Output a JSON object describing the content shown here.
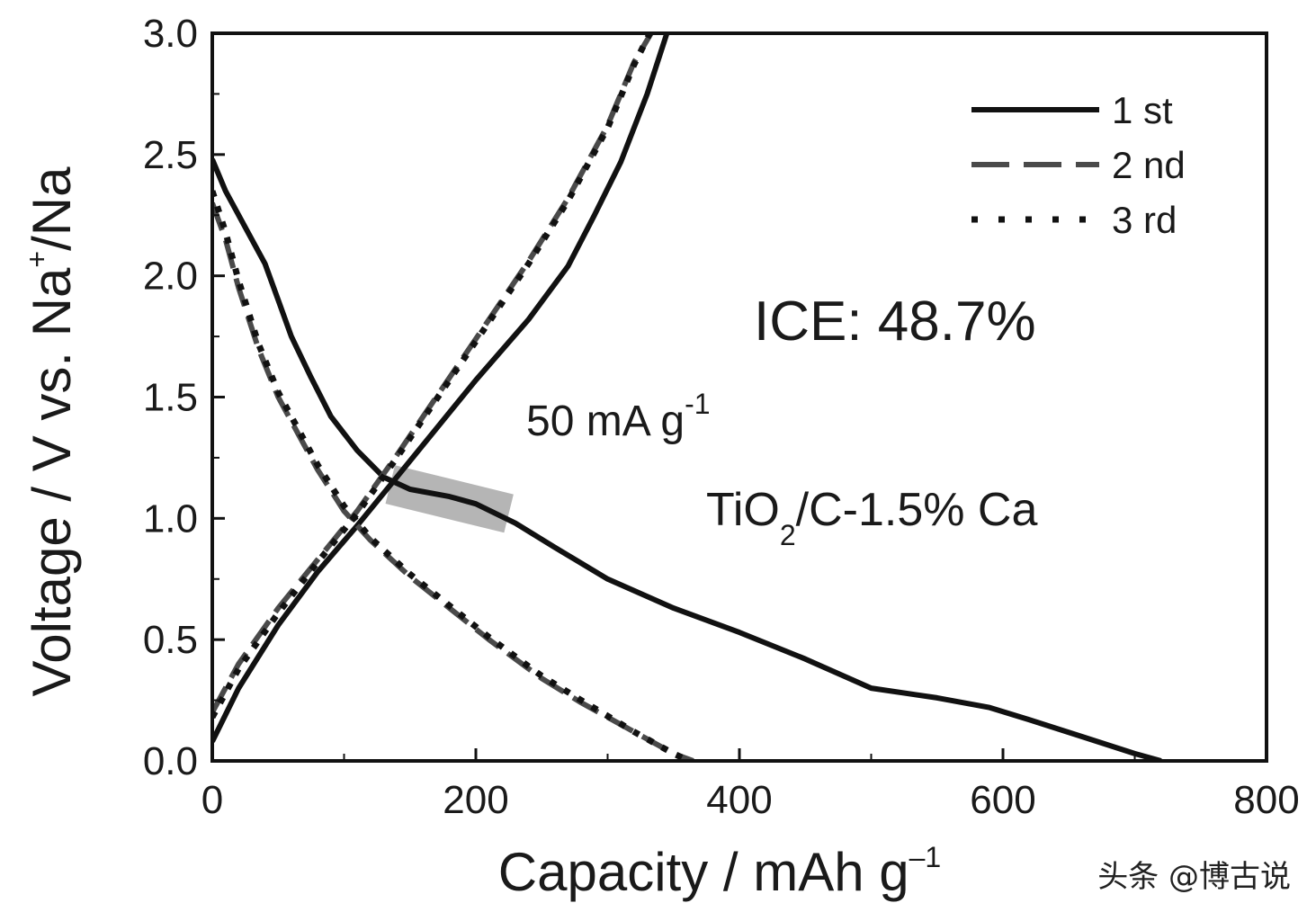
{
  "chart_data": {
    "type": "line",
    "xlabel": "Capacity / mAh g",
    "xlabel_sup": "–1",
    "ylabel_prefix": "Voltage / V vs. Na",
    "ylabel_sup": "+",
    "ylabel_suffix": "/Na",
    "xlim": [
      0,
      800
    ],
    "ylim": [
      0,
      3.0
    ],
    "xticks": [
      "0",
      "200",
      "400",
      "600",
      "800"
    ],
    "yticks": [
      "0.0",
      "0.5",
      "1.0",
      "1.5",
      "2.0",
      "2.5",
      "3.0"
    ],
    "legend": {
      "position": "top-right",
      "entries": [
        {
          "label": "1 st",
          "style": "solid",
          "color": "#111111"
        },
        {
          "label": "2 nd",
          "style": "dashed",
          "color": "#4a4a4a"
        },
        {
          "label": "3 rd",
          "style": "dotted",
          "color": "#111111"
        }
      ]
    },
    "annotations": {
      "ice": "ICE: 48.7%",
      "current_main": "50 mA g",
      "current_sup": "-1",
      "material_a": "TiO",
      "material_sub": "2",
      "material_b": "/C-1.5% Ca"
    },
    "highlight_band": {
      "from": [
        135,
        1.14
      ],
      "to": [
        225,
        1.02
      ],
      "color": "#a8a8a8"
    },
    "series": [
      {
        "name": "1 st discharge",
        "style": "solid",
        "color": "#111111",
        "points": [
          [
            0,
            2.48
          ],
          [
            10,
            2.35
          ],
          [
            25,
            2.2
          ],
          [
            40,
            2.05
          ],
          [
            50,
            1.9
          ],
          [
            60,
            1.75
          ],
          [
            75,
            1.58
          ],
          [
            90,
            1.42
          ],
          [
            110,
            1.28
          ],
          [
            130,
            1.17
          ],
          [
            150,
            1.12
          ],
          [
            180,
            1.09
          ],
          [
            200,
            1.06
          ],
          [
            230,
            0.98
          ],
          [
            260,
            0.88
          ],
          [
            300,
            0.75
          ],
          [
            350,
            0.63
          ],
          [
            400,
            0.53
          ],
          [
            450,
            0.42
          ],
          [
            500,
            0.3
          ],
          [
            550,
            0.26
          ],
          [
            590,
            0.22
          ],
          [
            620,
            0.17
          ],
          [
            660,
            0.1
          ],
          [
            700,
            0.03
          ],
          [
            720,
            0
          ]
        ]
      },
      {
        "name": "1 st charge",
        "style": "solid",
        "color": "#111111",
        "points": [
          [
            0,
            0.08
          ],
          [
            20,
            0.3
          ],
          [
            50,
            0.56
          ],
          [
            80,
            0.78
          ],
          [
            110,
            0.97
          ],
          [
            140,
            1.17
          ],
          [
            170,
            1.37
          ],
          [
            200,
            1.57
          ],
          [
            240,
            1.82
          ],
          [
            270,
            2.04
          ],
          [
            290,
            2.25
          ],
          [
            310,
            2.47
          ],
          [
            330,
            2.75
          ],
          [
            345,
            3.0
          ]
        ]
      },
      {
        "name": "2 nd discharge",
        "style": "dashed",
        "color": "#4a4a4a",
        "points": [
          [
            0,
            2.3
          ],
          [
            10,
            2.15
          ],
          [
            20,
            1.95
          ],
          [
            35,
            1.7
          ],
          [
            50,
            1.5
          ],
          [
            65,
            1.35
          ],
          [
            80,
            1.2
          ],
          [
            100,
            1.03
          ],
          [
            120,
            0.91
          ],
          [
            150,
            0.76
          ],
          [
            180,
            0.63
          ],
          [
            210,
            0.5
          ],
          [
            250,
            0.34
          ],
          [
            280,
            0.24
          ],
          [
            320,
            0.12
          ],
          [
            350,
            0.03
          ],
          [
            365,
            0
          ]
        ]
      },
      {
        "name": "2 nd charge",
        "style": "dashed",
        "color": "#4a4a4a",
        "points": [
          [
            0,
            0.2
          ],
          [
            20,
            0.4
          ],
          [
            50,
            0.63
          ],
          [
            80,
            0.83
          ],
          [
            110,
            1.03
          ],
          [
            140,
            1.26
          ],
          [
            170,
            1.5
          ],
          [
            200,
            1.74
          ],
          [
            240,
            2.06
          ],
          [
            270,
            2.32
          ],
          [
            300,
            2.62
          ],
          [
            320,
            2.88
          ],
          [
            333,
            3.0
          ]
        ]
      },
      {
        "name": "3 rd discharge",
        "style": "dotted",
        "color": "#111111",
        "points": [
          [
            0,
            2.35
          ],
          [
            10,
            2.18
          ],
          [
            20,
            1.98
          ],
          [
            35,
            1.72
          ],
          [
            50,
            1.52
          ],
          [
            65,
            1.37
          ],
          [
            80,
            1.22
          ],
          [
            100,
            1.05
          ],
          [
            120,
            0.92
          ],
          [
            150,
            0.77
          ],
          [
            180,
            0.64
          ],
          [
            210,
            0.51
          ],
          [
            250,
            0.35
          ],
          [
            280,
            0.25
          ],
          [
            320,
            0.12
          ],
          [
            350,
            0.03
          ],
          [
            362,
            0
          ]
        ]
      },
      {
        "name": "3 rd charge",
        "style": "dotted",
        "color": "#111111",
        "points": [
          [
            0,
            0.18
          ],
          [
            20,
            0.38
          ],
          [
            50,
            0.61
          ],
          [
            80,
            0.82
          ],
          [
            110,
            1.02
          ],
          [
            140,
            1.25
          ],
          [
            170,
            1.49
          ],
          [
            200,
            1.73
          ],
          [
            240,
            2.05
          ],
          [
            270,
            2.31
          ],
          [
            300,
            2.61
          ],
          [
            320,
            2.87
          ],
          [
            332,
            3.0
          ]
        ]
      }
    ]
  },
  "watermark": "头条 @博古说"
}
